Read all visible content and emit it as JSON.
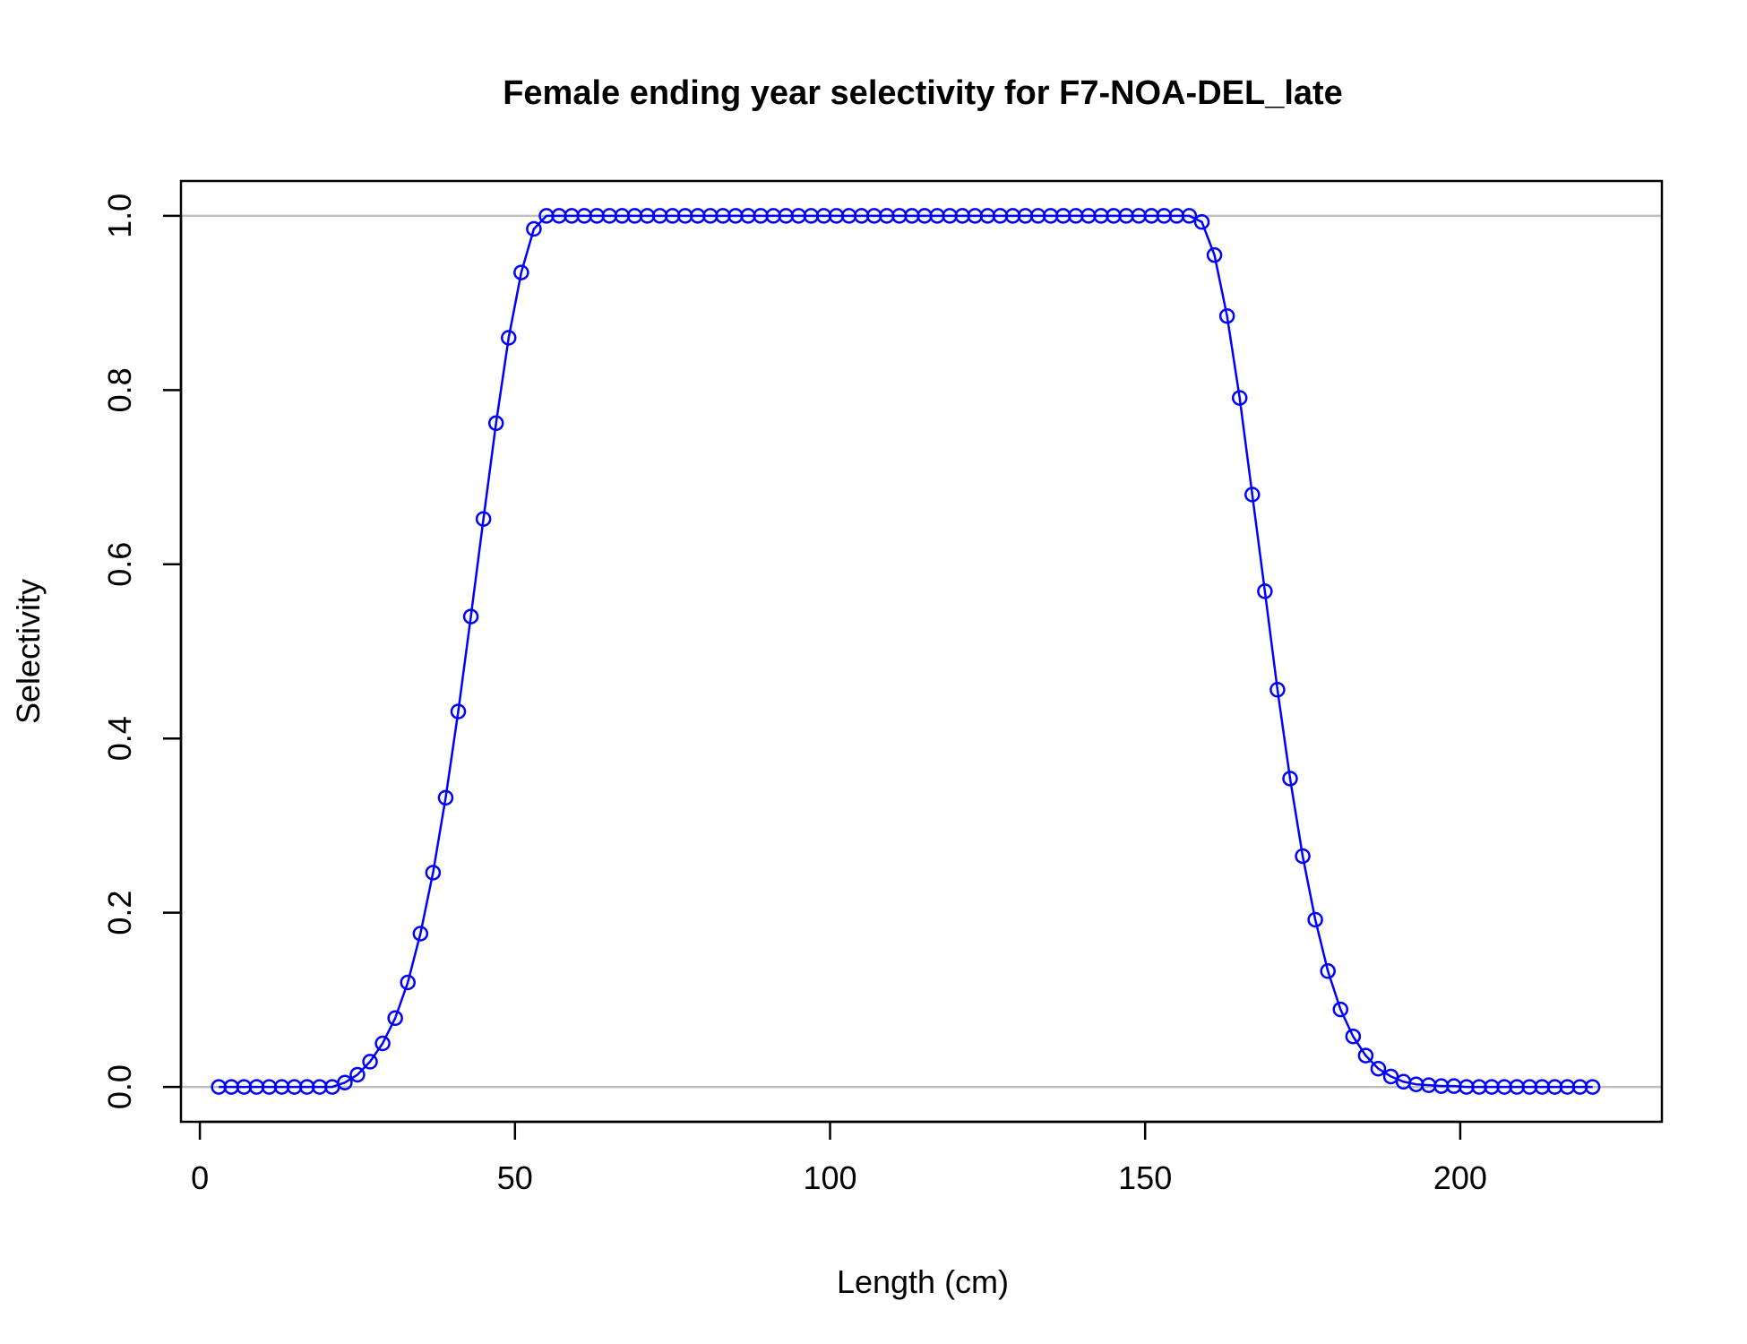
{
  "chart_data": {
    "type": "line",
    "title": "Female ending year selectivity for F7-NOA-DEL_late",
    "xlabel": "Length (cm)",
    "ylabel": "Selectivity",
    "xlim": [
      -3,
      232
    ],
    "ylim": [
      -0.04,
      1.04
    ],
    "xticks": [
      0,
      50,
      100,
      150,
      200
    ],
    "yticks": [
      0.0,
      0.2,
      0.4,
      0.6,
      0.8,
      1.0
    ],
    "xtick_labels": [
      "0",
      "50",
      "100",
      "150",
      "200"
    ],
    "ytick_labels": [
      "0.0",
      "0.2",
      "0.4",
      "0.6",
      "0.8",
      "1.0"
    ],
    "reference_lines": [
      0,
      1
    ],
    "colors": {
      "series": "#0000ff",
      "reference": "#bebebe",
      "axis": "#000000"
    },
    "series": [
      {
        "x": [
          3,
          5,
          7,
          9,
          11,
          13,
          15,
          17,
          19,
          21,
          23,
          25,
          27,
          29,
          31,
          33,
          35,
          37,
          39,
          41,
          43,
          45,
          47,
          49,
          51,
          53,
          55,
          57,
          59,
          61,
          63,
          65,
          67,
          69,
          71,
          73,
          75,
          77,
          79,
          81,
          83,
          85,
          87,
          89,
          91,
          93,
          95,
          97,
          99,
          101,
          103,
          105,
          107,
          109,
          111,
          113,
          115,
          117,
          119,
          121,
          123,
          125,
          127,
          129,
          131,
          133,
          135,
          137,
          139,
          141,
          143,
          145,
          147,
          149,
          151,
          153,
          155,
          157,
          159,
          161,
          163,
          165,
          167,
          169,
          171,
          173,
          175,
          177,
          179,
          181,
          183,
          185,
          187,
          189,
          191,
          193,
          195,
          197,
          199,
          201,
          203,
          205,
          207,
          209,
          211,
          213,
          215,
          217,
          219,
          221
        ],
        "y": [
          0,
          0,
          0,
          0,
          0,
          0,
          0,
          0,
          0,
          0,
          0.005,
          0.014,
          0.029,
          0.05,
          0.079,
          0.12,
          0.176,
          0.246,
          0.332,
          0.431,
          0.54,
          0.652,
          0.762,
          0.86,
          0.935,
          0.985,
          1,
          1,
          1,
          1,
          1,
          1,
          1,
          1,
          1,
          1,
          1,
          1,
          1,
          1,
          1,
          1,
          1,
          1,
          1,
          1,
          1,
          1,
          1,
          1,
          1,
          1,
          1,
          1,
          1,
          1,
          1,
          1,
          1,
          1,
          1,
          1,
          1,
          1,
          1,
          1,
          1,
          1,
          1,
          1,
          1,
          1,
          1,
          1,
          1,
          1,
          1,
          1,
          0.993,
          0.955,
          0.885,
          0.791,
          0.68,
          0.569,
          0.456,
          0.354,
          0.265,
          0.192,
          0.133,
          0.089,
          0.058,
          0.036,
          0.021,
          0.012,
          0.006,
          0.003,
          0.002,
          0.001,
          0.001,
          0,
          0,
          0,
          0,
          0,
          0,
          0,
          0,
          0,
          0,
          0
        ]
      }
    ]
  }
}
